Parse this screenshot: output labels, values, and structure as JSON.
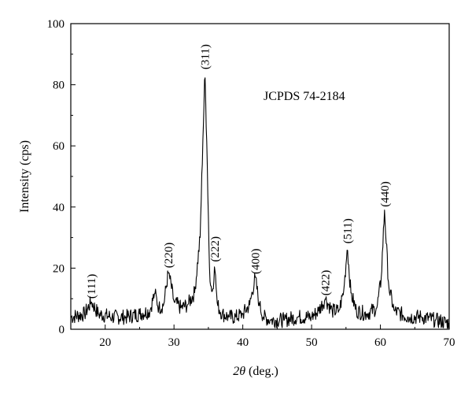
{
  "chart_data": {
    "type": "line",
    "title": "",
    "xlabel_symbol": "2θ",
    "xlabel_unit": " (deg.)",
    "ylabel": "Intensity (cps)",
    "xlim": [
      15,
      70
    ],
    "ylim": [
      0,
      100
    ],
    "x_ticks": [
      20,
      30,
      40,
      50,
      60,
      70
    ],
    "y_ticks": [
      0,
      20,
      40,
      60,
      80,
      100
    ],
    "grid": false,
    "annotation": "JCPDS 74-2184",
    "peaks": [
      {
        "label": "(111)",
        "x": 18.0,
        "y": 9
      },
      {
        "label": "(220)",
        "x": 29.2,
        "y": 19
      },
      {
        "label": "(311)",
        "x": 34.5,
        "y": 84
      },
      {
        "label": "(222)",
        "x": 35.9,
        "y": 21
      },
      {
        "label": "(400)",
        "x": 41.8,
        "y": 17
      },
      {
        "label": "(422)",
        "x": 52.0,
        "y": 10
      },
      {
        "label": "(511)",
        "x": 55.2,
        "y": 27
      },
      {
        "label": "(440)",
        "x": 60.6,
        "y": 39
      }
    ],
    "series": [
      {
        "x": [
          15,
          17,
          18,
          19,
          21,
          23,
          25,
          26.5,
          27.2,
          27.8,
          28.5,
          29.2,
          30,
          31,
          32,
          33,
          33.8,
          34.2,
          34.5,
          34.8,
          35.2,
          35.6,
          35.9,
          36.3,
          37,
          38,
          39,
          40,
          41,
          41.8,
          42.4,
          43,
          44,
          46,
          48,
          50,
          51,
          52,
          53,
          54,
          54.7,
          55.2,
          55.7,
          56.5,
          58,
          59.5,
          60.1,
          60.6,
          61.2,
          62,
          64,
          66,
          68,
          70
        ],
        "y": [
          4,
          5,
          9,
          5,
          4,
          4,
          5,
          6,
          12,
          7,
          8,
          19,
          9,
          7,
          8,
          12,
          30,
          62,
          84,
          58,
          16,
          12,
          21,
          8,
          5,
          4,
          4,
          5,
          8,
          17,
          8,
          4,
          3,
          3,
          4,
          4,
          6,
          10,
          6,
          6,
          13,
          27,
          12,
          6,
          5,
          7,
          16,
          39,
          14,
          6,
          4,
          4,
          3,
          2
        ]
      }
    ]
  }
}
